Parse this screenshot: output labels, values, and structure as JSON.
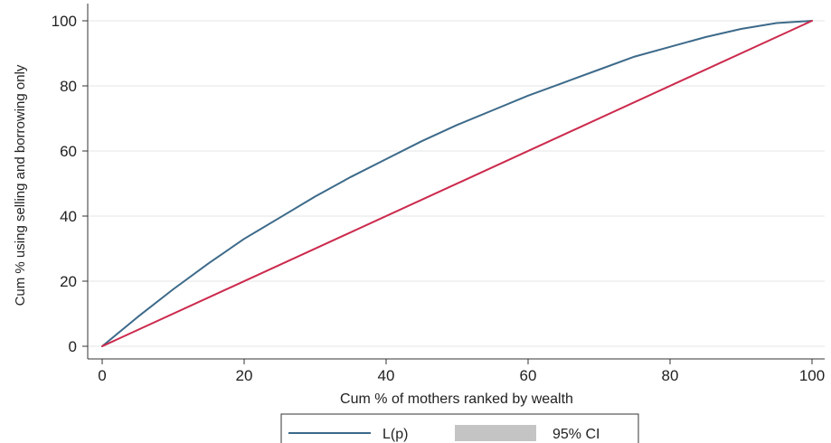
{
  "chart_data": {
    "type": "line",
    "xlabel": "Cum % of mothers ranked by wealth",
    "ylabel": "Cum % using selling and borrowing only",
    "xlim": [
      0,
      100
    ],
    "ylim": [
      0,
      100
    ],
    "xticks": [
      0,
      20,
      40,
      60,
      80,
      100
    ],
    "yticks": [
      0,
      20,
      40,
      60,
      80,
      100
    ],
    "grid": "horizontal",
    "legend_position": "bottom",
    "legend": [
      "L(p)",
      "95% CI"
    ],
    "series": [
      {
        "name": "L(p)",
        "color": "#3d6a8a",
        "x": [
          0,
          5,
          10,
          15,
          20,
          25,
          30,
          35,
          40,
          45,
          50,
          55,
          60,
          65,
          70,
          75,
          80,
          85,
          90,
          95,
          100
        ],
        "y": [
          0,
          9,
          17.5,
          25.5,
          33,
          39.5,
          46,
          52,
          57.5,
          63,
          68,
          72.5,
          77,
          81,
          85,
          89,
          92,
          95,
          97.5,
          99.3,
          100
        ]
      },
      {
        "name": "",
        "color": "#cc2a4d",
        "x": [
          0,
          100
        ],
        "y": [
          0,
          100
        ]
      }
    ],
    "ci_color": "#c4c4c4"
  }
}
